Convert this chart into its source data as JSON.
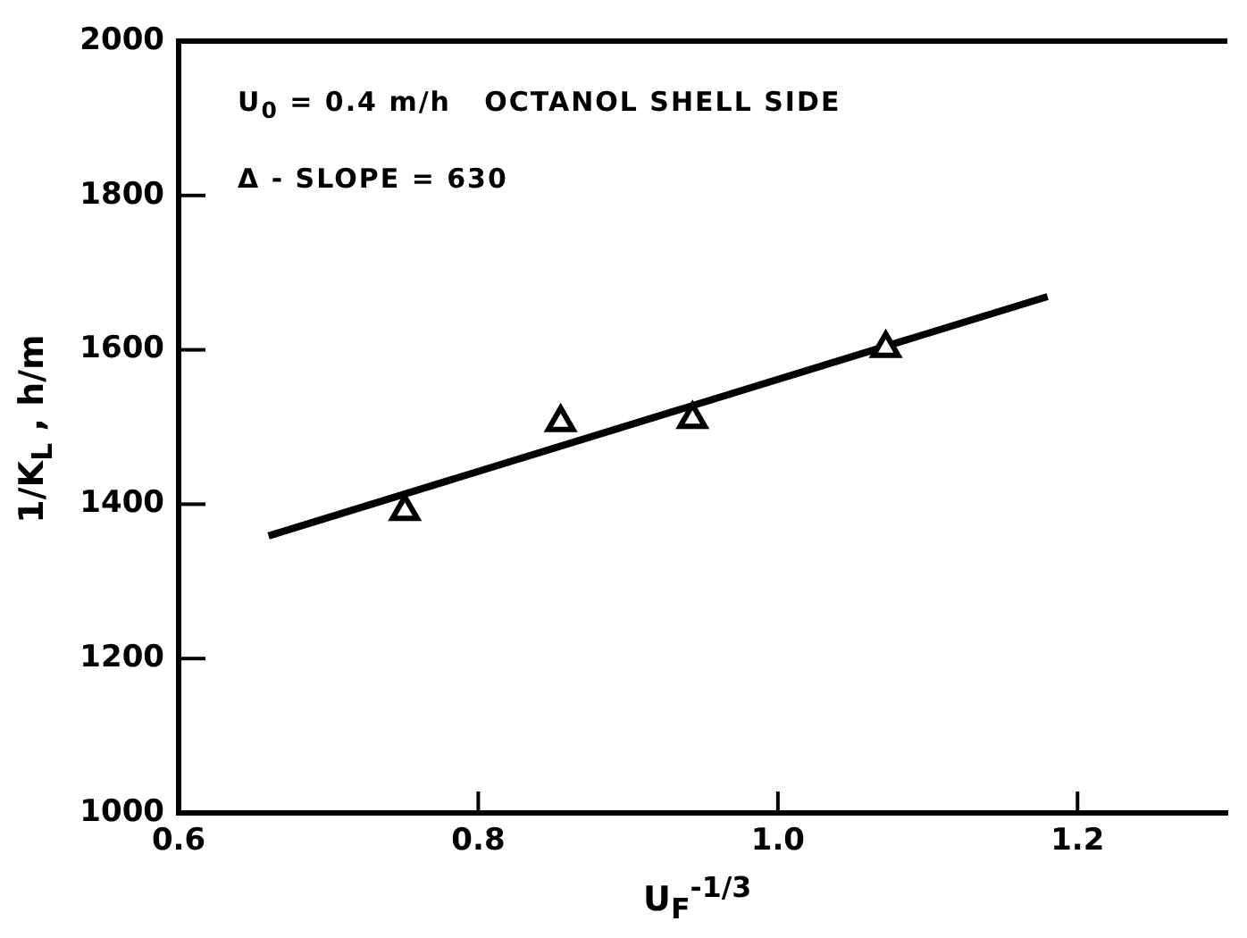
{
  "chart_data": {
    "type": "scatter",
    "xlabel": "U$_{F}$$^{-1/3}$",
    "ylabel": "1/K$_{L}$ ,  h/m",
    "xlim": [
      0.6,
      1.3
    ],
    "xticks": [
      0.6,
      0.8,
      {
        "value": 1.0,
        "label": "1.0"
      },
      1.2
    ],
    "ylim": [
      1000,
      2000
    ],
    "yticks": [
      1000,
      1200,
      1400,
      1600,
      1800,
      2000
    ],
    "annotations": [
      "U$_{0}$ = 0.4 m/h   OCTANOL SHELL SIDE",
      "Δ - SLOPE = 630"
    ],
    "series": [
      {
        "marker": "triangle",
        "color": "#000000",
        "x": [
          0.751,
          0.855,
          0.943,
          1.072
        ],
        "values": [
          1391,
          1506,
          1510,
          1602
        ]
      },
      {
        "type": "line",
        "marker": "none",
        "color": "#000000",
        "x": [
          0.66,
          1.18
        ],
        "values": [
          1359,
          1669
        ]
      }
    ]
  }
}
